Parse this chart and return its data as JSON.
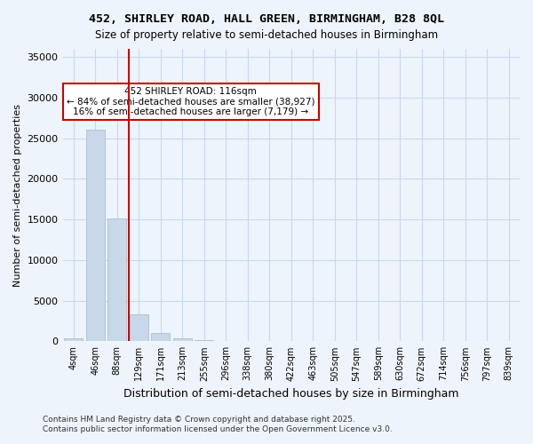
{
  "title_line1": "452, SHIRLEY ROAD, HALL GREEN, BIRMINGHAM, B28 8QL",
  "title_line2": "Size of property relative to semi-detached houses in Birmingham",
  "xlabel": "Distribution of semi-detached houses by size in Birmingham",
  "ylabel": "Number of semi-detached properties",
  "categories": [
    "4sqm",
    "46sqm",
    "88sqm",
    "129sqm",
    "171sqm",
    "213sqm",
    "255sqm",
    "296sqm",
    "338sqm",
    "380sqm",
    "422sqm",
    "463sqm",
    "505sqm",
    "547sqm",
    "589sqm",
    "630sqm",
    "672sqm",
    "714sqm",
    "756sqm",
    "797sqm",
    "839sqm"
  ],
  "bar_values": [
    400,
    26000,
    15100,
    3300,
    1000,
    400,
    150,
    50,
    20,
    10,
    5,
    3,
    2,
    1,
    1,
    0,
    0,
    0,
    0,
    0,
    0
  ],
  "bar_color": "#c8d8e8",
  "bar_edge_color": "#a0b8cc",
  "property_size": 116,
  "property_label": "452 SHIRLEY ROAD: 116sqm",
  "pct_smaller": 84,
  "count_smaller": 38927,
  "pct_larger": 16,
  "count_larger": 7179,
  "vline_color": "#cc0000",
  "vline_x_index": 2.55,
  "annotation_box_color": "#cc0000",
  "ylim": [
    0,
    36000
  ],
  "yticks": [
    0,
    5000,
    10000,
    15000,
    20000,
    25000,
    30000,
    35000
  ],
  "grid_color": "#c8d8f0",
  "bg_color": "#eef4fb",
  "footer_line1": "Contains HM Land Registry data © Crown copyright and database right 2025.",
  "footer_line2": "Contains public sector information licensed under the Open Government Licence v3.0."
}
